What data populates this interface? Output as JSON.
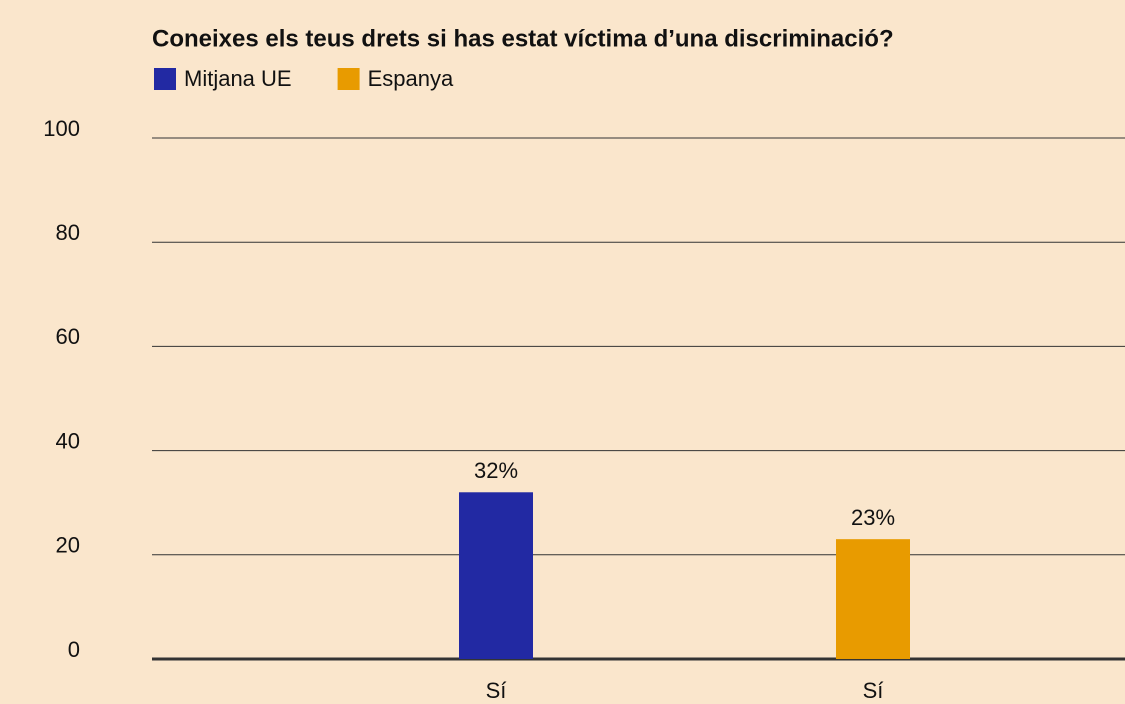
{
  "chart_data": {
    "type": "bar",
    "title": "Coneixes els teus drets si has estat víctima d’una discriminació?",
    "categories": [
      "Sí",
      "Sí"
    ],
    "series": [
      {
        "name": "Mitjana UE",
        "color": "#2229a3",
        "values": [
          32,
          null
        ],
        "value_labels": [
          "32%",
          null
        ]
      },
      {
        "name": "Espanya",
        "color": "#e89b00",
        "values": [
          null,
          23
        ],
        "value_labels": [
          null,
          "23%"
        ]
      }
    ],
    "ylim": [
      0,
      100
    ],
    "yticks": [
      0,
      20,
      40,
      60,
      80,
      100
    ],
    "grid": true
  }
}
